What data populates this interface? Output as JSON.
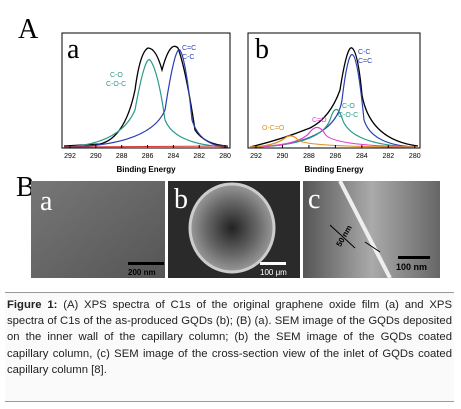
{
  "figure": {
    "panel_A": {
      "label": "A",
      "plots": [
        {
          "label": "a",
          "xticks": [
            292,
            290,
            288,
            286,
            284,
            282,
            280
          ],
          "xlabel": "Binding Energy",
          "annotations": [
            "C=C",
            "C-C",
            "C-O",
            "C-O-C"
          ]
        },
        {
          "label": "b",
          "xticks": [
            292,
            290,
            288,
            286,
            284,
            282,
            280
          ],
          "xlabel": "Binding Energy",
          "annotations": [
            "C-C",
            "C=C",
            "C-O",
            "C-O-C",
            "C=O",
            "O-C=O"
          ]
        }
      ]
    },
    "panel_B": {
      "label": "B",
      "images": [
        {
          "label": "a",
          "scale_bar": "200 nm"
        },
        {
          "label": "b",
          "scale_bar": "100 μm"
        },
        {
          "label": "c",
          "scale_bar": "100 nm",
          "annotation": "50 nm"
        }
      ]
    },
    "caption": {
      "label": "Figure 1:",
      "text": "(A) XPS spectra of C1s of the original graphene oxide film (a) and XPS spectra of C1s of the as-produced GQDs (b); (B) (a). SEM image of the GQDs deposited on the inner wall of the capillary column; (b) the SEM image of the GQDs coated capillary column, (c) SEM image of the cross-section view of the inlet of GQDs coated capillary column [8]."
    }
  }
}
